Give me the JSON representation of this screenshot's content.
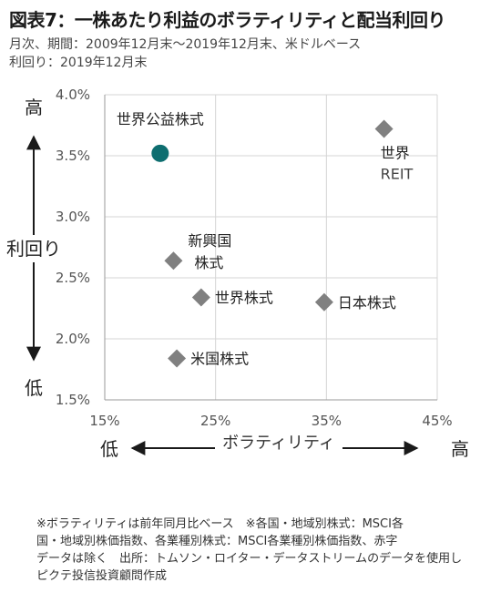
{
  "header": {
    "title": "図表7：一株あたり利益のボラティリティと配当利回り",
    "subtitle_line1": "月次、期間：2009年12月末〜2019年12月末、米ドルベース",
    "subtitle_line2": "利回り：2019年12月末"
  },
  "chart_data": {
    "type": "scatter",
    "xlabel": "ボラティリティ",
    "ylabel": "利回り",
    "x_low_label": "低",
    "x_high_label": "高",
    "y_high_label": "高",
    "y_low_label": "低",
    "xlim": [
      15,
      45
    ],
    "ylim": [
      1.5,
      4.0
    ],
    "x_ticks": [
      "15%",
      "25%",
      "35%",
      "45%"
    ],
    "y_ticks": [
      "1.5%",
      "2.0%",
      "2.5%",
      "3.0%",
      "3.5%",
      "4.0%"
    ],
    "grid": true,
    "points": [
      {
        "label_lines": [
          "世界公益株式"
        ],
        "x": 20.0,
        "y": 3.52,
        "marker": "circle",
        "color": "#0e6e70",
        "label_pos": "above"
      },
      {
        "label_lines": [
          "世界",
          "REIT"
        ],
        "x": 40.2,
        "y": 3.72,
        "marker": "diamond",
        "color": "#808080",
        "label_pos": "below"
      },
      {
        "label_lines": [
          "新興国",
          "株式"
        ],
        "x": 21.2,
        "y": 2.64,
        "marker": "diamond",
        "color": "#808080",
        "label_pos": "right-stack"
      },
      {
        "label_lines": [
          "世界株式"
        ],
        "x": 23.7,
        "y": 2.34,
        "marker": "diamond",
        "color": "#808080",
        "label_pos": "right"
      },
      {
        "label_lines": [
          "日本株式"
        ],
        "x": 34.8,
        "y": 2.3,
        "marker": "diamond",
        "color": "#808080",
        "label_pos": "right"
      },
      {
        "label_lines": [
          "米国株式"
        ],
        "x": 21.5,
        "y": 1.84,
        "marker": "diamond",
        "color": "#808080",
        "label_pos": "right"
      }
    ]
  },
  "notes": {
    "line1": "※ボラティリティは前年同月比ベース　※各国・地域別株式：MSCI各",
    "line2": "国・地域別株価指数、各業種別株式：MSCI各業種別株価指数、赤字",
    "line3": "データは除く　出所：トムソン・ロイター・データストリームのデータを使用し",
    "line4": "ピクテ投信投資顧問作成"
  }
}
